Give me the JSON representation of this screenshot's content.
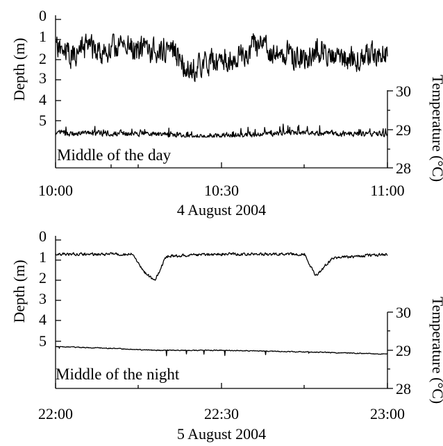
{
  "chart_data": [
    {
      "type": "line",
      "annotation": "Middle of the day",
      "xlabel": "4 August 2004",
      "ylabel_left": "Depth (m)",
      "ylabel_right": "Temperature (°C)",
      "x_ticks": [
        "10:00",
        "10:30",
        "11:00"
      ],
      "xlim": [
        "10:00",
        "11:00"
      ],
      "depth_axis": {
        "ticks": [
          "0",
          "1",
          "2",
          "3",
          "4",
          "5"
        ],
        "ylim": [
          0,
          5
        ],
        "inverted": true
      },
      "temperature_axis": {
        "ticks": [
          "30",
          "29",
          "28"
        ],
        "ylim": [
          28,
          30
        ]
      },
      "grid": false,
      "series": [
        {
          "axis": "depth",
          "x": [
            "10:00",
            "10:03",
            "10:06",
            "10:09",
            "10:12",
            "10:15",
            "10:18",
            "10:21",
            "10:24",
            "10:27",
            "10:30",
            "10:33",
            "10:36",
            "10:39",
            "10:42",
            "10:45",
            "10:48",
            "10:51",
            "10:54",
            "10:57",
            "11:00"
          ],
          "values": [
            1.4,
            1.8,
            1.3,
            1.7,
            1.2,
            1.5,
            1.6,
            1.3,
            2.5,
            2.2,
            2.0,
            1.9,
            1.3,
            1.6,
            1.7,
            1.9,
            1.4,
            1.8,
            2.0,
            1.7,
            1.6
          ],
          "range": [
            0.3,
            3.1
          ]
        },
        {
          "axis": "temperature",
          "x": [
            "10:00",
            "10:06",
            "10:12",
            "10:18",
            "10:24",
            "10:30",
            "10:36",
            "10:42",
            "10:48",
            "10:54",
            "11:00"
          ],
          "values": [
            28.9,
            28.9,
            28.9,
            28.88,
            28.82,
            28.83,
            28.87,
            28.92,
            28.9,
            28.88,
            28.88
          ],
          "range": [
            28.8,
            29.2
          ]
        }
      ]
    },
    {
      "type": "line",
      "annotation": "Middle of the night",
      "xlabel": "5 August 2004",
      "ylabel_left": "Depth (m)",
      "ylabel_right": "Temperature (°C)",
      "x_ticks": [
        "22:00",
        "22:30",
        "23:00"
      ],
      "xlim": [
        "22:00",
        "23:00"
      ],
      "depth_axis": {
        "ticks": [
          "0",
          "1",
          "2",
          "3",
          "4",
          "5"
        ],
        "ylim": [
          0,
          5
        ],
        "inverted": true
      },
      "temperature_axis": {
        "ticks": [
          "30",
          "29",
          "28"
        ],
        "ylim": [
          28,
          30
        ]
      },
      "grid": false,
      "series": [
        {
          "axis": "depth",
          "x": [
            "22:00",
            "22:07",
            "22:14",
            "22:16",
            "22:18",
            "22:20",
            "22:30",
            "22:40",
            "22:45",
            "22:47",
            "22:50",
            "23:00"
          ],
          "values": [
            0.7,
            0.7,
            0.7,
            1.6,
            2.0,
            0.8,
            0.7,
            0.7,
            0.7,
            1.8,
            0.9,
            0.7
          ],
          "range": [
            0.3,
            2.0
          ]
        },
        {
          "axis": "temperature",
          "x": [
            "22:00",
            "22:10",
            "22:18",
            "22:30",
            "22:40",
            "22:47",
            "23:00"
          ],
          "values": [
            29.1,
            29.05,
            29.0,
            29.0,
            28.97,
            28.95,
            28.9
          ],
          "range": [
            28.8,
            29.1
          ]
        }
      ]
    }
  ]
}
